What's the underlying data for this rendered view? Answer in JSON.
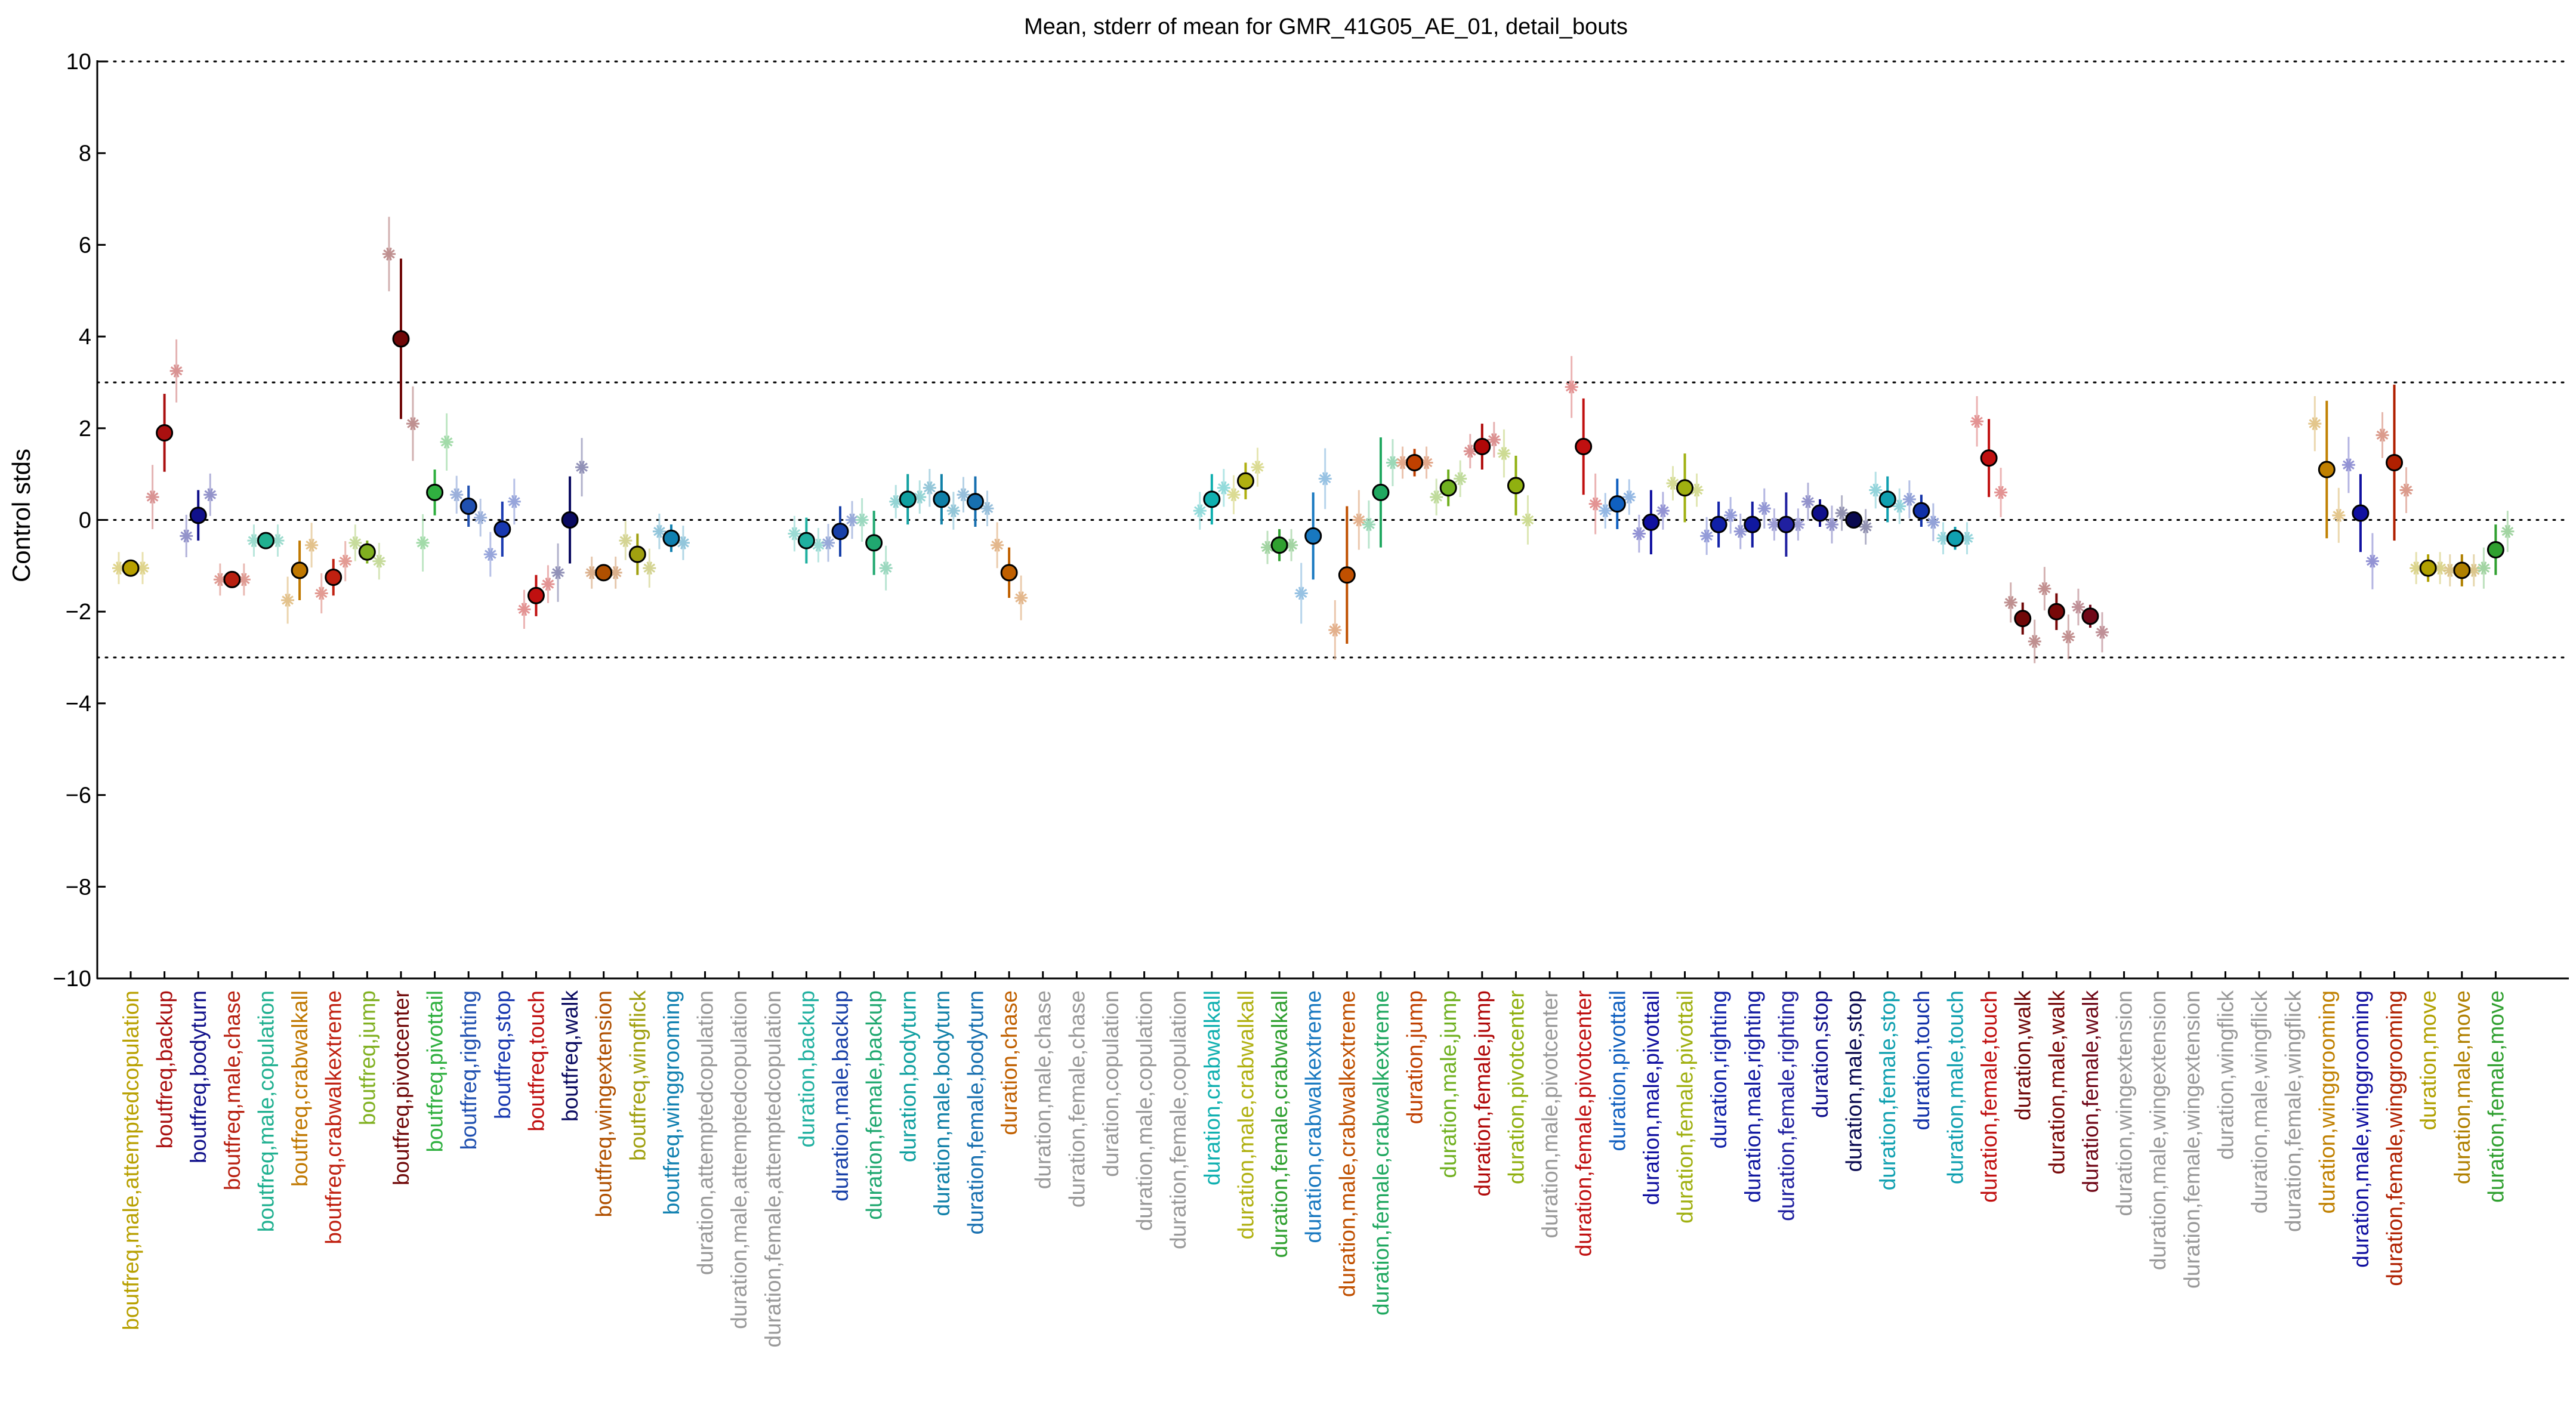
{
  "chart_data": {
    "type": "scatter",
    "title": "Mean, stderr of mean for GMR_41G05_AE_01, detail_bouts",
    "xlabel": "",
    "ylabel": "Control stds",
    "ylim": [
      -10,
      10
    ],
    "yticks": [
      -10,
      -8,
      -6,
      -4,
      -2,
      0,
      2,
      4,
      6,
      8,
      10
    ],
    "reference_lines": [
      -10,
      -3,
      0,
      3,
      10
    ],
    "grid": false,
    "legend": "none",
    "categories": [
      {
        "label": "boutfreq,male,attemptedcopulation",
        "color": "#b8a000",
        "mean": -1.05,
        "se": 0.05,
        "pts": [
          -1.05,
          -1.05
        ]
      },
      {
        "label": "boutfreq,backup",
        "color": "#aa1010",
        "mean": 1.9,
        "se": 0.85,
        "pts": [
          0.5,
          3.25
        ]
      },
      {
        "label": "boutfreq,bodyturn",
        "color": "#10108a",
        "mean": 0.1,
        "se": 0.55,
        "pts": [
          -0.35,
          0.55
        ]
      },
      {
        "label": "boutfreq,male,chase",
        "color": "#b82010",
        "mean": -1.3,
        "se": 0.05,
        "pts": [
          -1.3,
          -1.3
        ]
      },
      {
        "label": "boutfreq,male,copulation",
        "color": "#20b090",
        "mean": -0.45,
        "se": 0.08,
        "pts": [
          -0.45,
          -0.45
        ]
      },
      {
        "label": "boutfreq,crabwalkall",
        "color": "#c07800",
        "mean": -1.1,
        "se": 0.65,
        "pts": [
          -1.75,
          -0.55
        ]
      },
      {
        "label": "boutfreq,crabwalkextreme",
        "color": "#c02010",
        "mean": -1.25,
        "se": 0.4,
        "pts": [
          -1.6,
          -0.9
        ]
      },
      {
        "label": "boutfreq,jump",
        "color": "#80b020",
        "mean": -0.7,
        "se": 0.25,
        "pts": [
          -0.5,
          -0.9
        ]
      },
      {
        "label": "boutfreq,pivotcenter",
        "color": "#700808",
        "mean": 3.95,
        "se": 1.75,
        "pts": [
          5.8,
          2.1
        ]
      },
      {
        "label": "boutfreq,pivottail",
        "color": "#30b040",
        "mean": 0.6,
        "se": 0.5,
        "pts": [
          -0.5,
          1.7
        ]
      },
      {
        "label": "boutfreq,righting",
        "color": "#2050b0",
        "mean": 0.3,
        "se": 0.45,
        "pts": [
          0.55,
          0.05
        ]
      },
      {
        "label": "boutfreq,stop",
        "color": "#1838b0",
        "mean": -0.2,
        "se": 0.6,
        "pts": [
          -0.75,
          0.4
        ]
      },
      {
        "label": "boutfreq,touch",
        "color": "#c01010",
        "mean": -1.65,
        "se": 0.45,
        "pts": [
          -1.95,
          -1.4
        ]
      },
      {
        "label": "boutfreq,walk",
        "color": "#0a0a60",
        "mean": 0.0,
        "se": 0.95,
        "pts": [
          -1.15,
          1.15
        ]
      },
      {
        "label": "boutfreq,wingextension",
        "color": "#b05000",
        "mean": -1.15,
        "se": 0.05,
        "pts": [
          -1.15,
          -1.15
        ]
      },
      {
        "label": "boutfreq,wingflick",
        "color": "#a0a010",
        "mean": -0.75,
        "se": 0.45,
        "pts": [
          -0.45,
          -1.05
        ]
      },
      {
        "label": "boutfreq,winggrooming",
        "color": "#1080b0",
        "mean": -0.4,
        "se": 0.3,
        "pts": [
          -0.25,
          -0.5
        ]
      },
      {
        "label": "duration,attemptedcopulation",
        "color": "#999999",
        "mean": null,
        "se": null,
        "pts": []
      },
      {
        "label": "duration,male,attemptedcopulation",
        "color": "#999999",
        "mean": null,
        "se": null,
        "pts": []
      },
      {
        "label": "duration,female,attemptedcopulation",
        "color": "#999999",
        "mean": null,
        "se": null,
        "pts": []
      },
      {
        "label": "duration,backup",
        "color": "#20b0a0",
        "mean": -0.45,
        "se": 0.5,
        "pts": [
          -0.3,
          -0.55
        ]
      },
      {
        "label": "duration,male,backup",
        "color": "#1840a8",
        "mean": -0.25,
        "se": 0.55,
        "pts": [
          -0.5,
          0.0
        ]
      },
      {
        "label": "duration,female,backup",
        "color": "#20a870",
        "mean": -0.5,
        "se": 0.7,
        "pts": [
          0.0,
          -1.05
        ]
      },
      {
        "label": "duration,bodyturn",
        "color": "#10a0a0",
        "mean": 0.45,
        "se": 0.55,
        "pts": [
          0.4,
          0.5
        ]
      },
      {
        "label": "duration,male,bodyturn",
        "color": "#1080a8",
        "mean": 0.45,
        "se": 0.55,
        "pts": [
          0.7,
          0.2
        ]
      },
      {
        "label": "duration,female,bodyturn",
        "color": "#1870b0",
        "mean": 0.4,
        "se": 0.55,
        "pts": [
          0.55,
          0.25
        ]
      },
      {
        "label": "duration,chase",
        "color": "#c06000",
        "mean": -1.15,
        "se": 0.55,
        "pts": [
          -0.55,
          -1.7
        ]
      },
      {
        "label": "duration,male,chase",
        "color": "#999999",
        "mean": null,
        "se": null,
        "pts": []
      },
      {
        "label": "duration,female,chase",
        "color": "#999999",
        "mean": null,
        "se": null,
        "pts": []
      },
      {
        "label": "duration,copulation",
        "color": "#999999",
        "mean": null,
        "se": null,
        "pts": []
      },
      {
        "label": "duration,male,copulation",
        "color": "#999999",
        "mean": null,
        "se": null,
        "pts": []
      },
      {
        "label": "duration,female,copulation",
        "color": "#999999",
        "mean": null,
        "se": null,
        "pts": []
      },
      {
        "label": "duration,crabwalkall",
        "color": "#10b0b0",
        "mean": 0.45,
        "se": 0.55,
        "pts": [
          0.2,
          0.7
        ]
      },
      {
        "label": "duration,male,crabwalkall",
        "color": "#b0b010",
        "mean": 0.85,
        "se": 0.4,
        "pts": [
          0.55,
          1.15
        ]
      },
      {
        "label": "duration,female,crabwalkall",
        "color": "#30a030",
        "mean": -0.55,
        "se": 0.35,
        "pts": [
          -0.6,
          -0.55
        ]
      },
      {
        "label": "duration,crabwalkextreme",
        "color": "#1878c0",
        "mean": -0.35,
        "se": 0.95,
        "pts": [
          -1.6,
          0.9
        ]
      },
      {
        "label": "duration,male,crabwalkextreme",
        "color": "#c05000",
        "mean": -1.2,
        "se": 1.5,
        "pts": [
          -2.4,
          0.0
        ]
      },
      {
        "label": "duration,female,crabwalkextreme",
        "color": "#20a860",
        "mean": 0.6,
        "se": 1.2,
        "pts": [
          -0.1,
          1.25
        ]
      },
      {
        "label": "duration,jump",
        "color": "#c04000",
        "mean": 1.25,
        "se": 0.3,
        "pts": [
          1.25,
          1.25
        ]
      },
      {
        "label": "duration,male,jump",
        "color": "#70b020",
        "mean": 0.7,
        "se": 0.4,
        "pts": [
          0.5,
          0.9
        ]
      },
      {
        "label": "duration,female,jump",
        "color": "#b00808",
        "mean": 1.6,
        "se": 0.5,
        "pts": [
          1.5,
          1.75
        ]
      },
      {
        "label": "duration,pivotcenter",
        "color": "#90b010",
        "mean": 0.75,
        "se": 0.65,
        "pts": [
          1.45,
          0.0
        ]
      },
      {
        "label": "duration,male,pivotcenter",
        "color": "#999999",
        "mean": null,
        "se": null,
        "pts": []
      },
      {
        "label": "duration,female,pivotcenter",
        "color": "#c01010",
        "mean": 1.6,
        "se": 1.05,
        "pts": [
          2.9,
          0.35
        ]
      },
      {
        "label": "duration,pivottail",
        "color": "#1060c0",
        "mean": 0.35,
        "se": 0.55,
        "pts": [
          0.2,
          0.5
        ]
      },
      {
        "label": "duration,male,pivottail",
        "color": "#1010a0",
        "mean": -0.05,
        "se": 0.7,
        "pts": [
          -0.3,
          0.2
        ]
      },
      {
        "label": "duration,female,pivottail",
        "color": "#a0b010",
        "mean": 0.7,
        "se": 0.75,
        "pts": [
          0.8,
          0.65
        ]
      },
      {
        "label": "duration,righting",
        "color": "#1020a8",
        "mean": -0.1,
        "se": 0.5,
        "pts": [
          -0.35,
          0.1
        ]
      },
      {
        "label": "duration,male,righting",
        "color": "#1018a0",
        "mean": -0.1,
        "se": 0.5,
        "pts": [
          -0.25,
          0.25
        ]
      },
      {
        "label": "duration,female,righting",
        "color": "#2020a0",
        "mean": -0.1,
        "se": 0.7,
        "pts": [
          -0.1,
          -0.1
        ]
      },
      {
        "label": "duration,stop",
        "color": "#10108c",
        "mean": 0.15,
        "se": 0.3,
        "pts": [
          0.4,
          -0.1
        ]
      },
      {
        "label": "duration,male,stop",
        "color": "#0a0a50",
        "mean": 0.0,
        "se": 0.15,
        "pts": [
          0.15,
          -0.15
        ]
      },
      {
        "label": "duration,female,stop",
        "color": "#10a0b0",
        "mean": 0.45,
        "se": 0.5,
        "pts": [
          0.65,
          0.3
        ]
      },
      {
        "label": "duration,touch",
        "color": "#1030a8",
        "mean": 0.2,
        "se": 0.35,
        "pts": [
          0.45,
          -0.05
        ]
      },
      {
        "label": "duration,male,touch",
        "color": "#10a0b0",
        "mean": -0.4,
        "se": 0.25,
        "pts": [
          -0.4,
          -0.4
        ]
      },
      {
        "label": "duration,female,touch",
        "color": "#c01010",
        "mean": 1.35,
        "se": 0.85,
        "pts": [
          2.15,
          0.6
        ]
      },
      {
        "label": "duration,walk",
        "color": "#700808",
        "mean": -2.15,
        "se": 0.35,
        "pts": [
          -1.8,
          -2.65
        ]
      },
      {
        "label": "duration,male,walk",
        "color": "#780808",
        "mean": -2.0,
        "se": 0.4,
        "pts": [
          -1.5,
          -2.55
        ]
      },
      {
        "label": "duration,female,walk",
        "color": "#700818",
        "mean": -2.1,
        "se": 0.25,
        "pts": [
          -1.9,
          -2.45
        ]
      },
      {
        "label": "duration,wingextension",
        "color": "#999999",
        "mean": null,
        "se": null,
        "pts": []
      },
      {
        "label": "duration,male,wingextension",
        "color": "#999999",
        "mean": null,
        "se": null,
        "pts": []
      },
      {
        "label": "duration,female,wingextension",
        "color": "#999999",
        "mean": null,
        "se": null,
        "pts": []
      },
      {
        "label": "duration,wingflick",
        "color": "#999999",
        "mean": null,
        "se": null,
        "pts": []
      },
      {
        "label": "duration,male,wingflick",
        "color": "#999999",
        "mean": null,
        "se": null,
        "pts": []
      },
      {
        "label": "duration,female,wingflick",
        "color": "#999999",
        "mean": null,
        "se": null,
        "pts": []
      },
      {
        "label": "duration,winggrooming",
        "color": "#c08000",
        "mean": 1.1,
        "se": 1.5,
        "pts": [
          2.1,
          0.1
        ]
      },
      {
        "label": "duration,male,winggrooming",
        "color": "#1010a0",
        "mean": 0.15,
        "se": 0.85,
        "pts": [
          1.2,
          -0.9
        ]
      },
      {
        "label": "duration,female,winggrooming",
        "color": "#b02000",
        "mean": 1.25,
        "se": 1.7,
        "pts": [
          1.85,
          0.65
        ]
      },
      {
        "label": "duration,move",
        "color": "#b0a000",
        "mean": -1.05,
        "se": 0.3,
        "pts": [
          -1.05,
          -1.05
        ]
      },
      {
        "label": "duration,male,move",
        "color": "#b08000",
        "mean": -1.1,
        "se": 0.35,
        "pts": [
          -1.1,
          -1.1
        ]
      },
      {
        "label": "duration,female,move",
        "color": "#30a030",
        "mean": -0.65,
        "se": 0.55,
        "pts": [
          -1.05,
          -0.25
        ]
      }
    ]
  }
}
